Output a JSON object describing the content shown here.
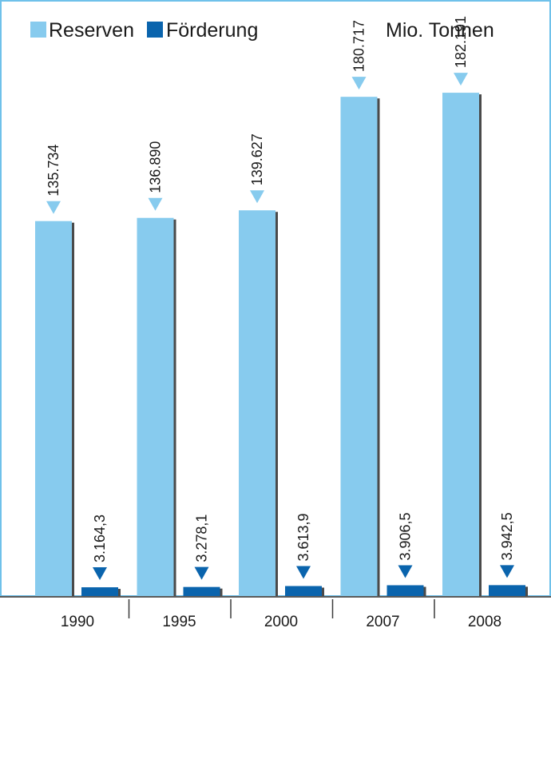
{
  "chart_data": {
    "type": "bar",
    "unit": "Mio. Tonnen",
    "categories": [
      "1990",
      "1995",
      "2000",
      "2007",
      "2008"
    ],
    "series": [
      {
        "name": "Reserven",
        "color": "#87cbee",
        "values": [
          135734,
          136890,
          139627,
          180717,
          182191
        ],
        "labels": [
          "135.734",
          "136.890",
          "139.627",
          "180.717",
          "182.191"
        ]
      },
      {
        "name": "Förderung",
        "color": "#0a64ad",
        "values": [
          3164.3,
          3278.1,
          3613.9,
          3906.5,
          3942.5
        ],
        "labels": [
          "3.164,3",
          "3.278,1",
          "3.613,9",
          "3.906,5",
          "3.942,5"
        ]
      }
    ],
    "ylim": [
      0,
      188000
    ],
    "legend_position": "top-left",
    "grid": false
  }
}
